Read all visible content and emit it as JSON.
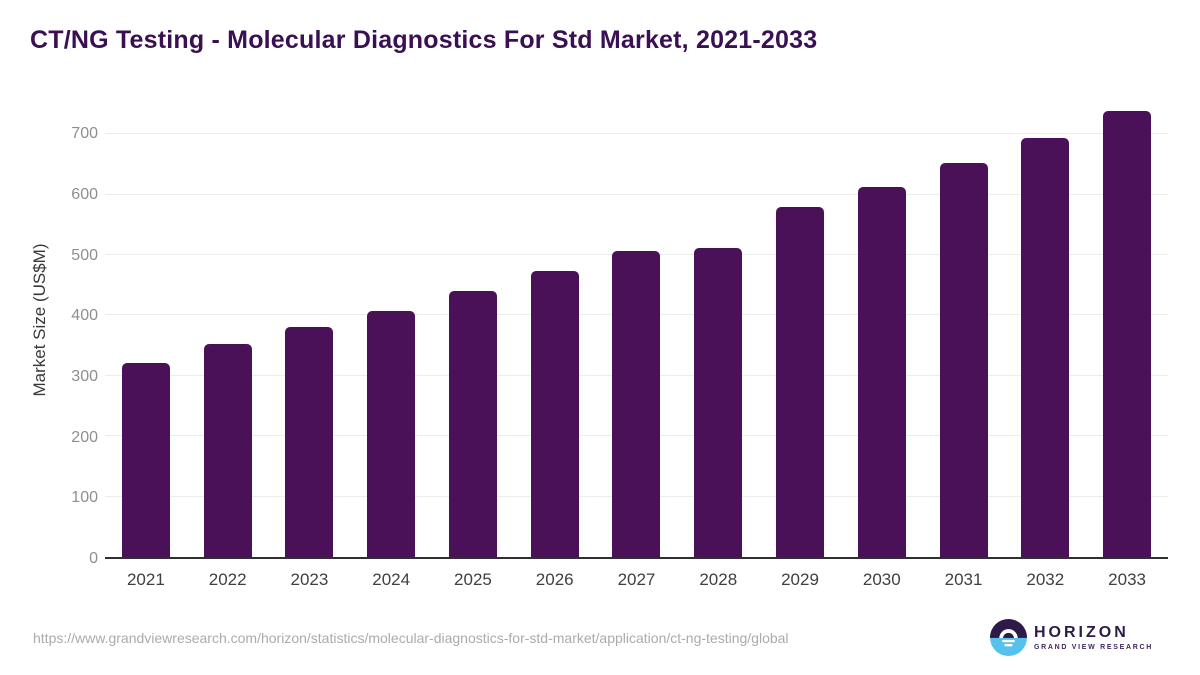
{
  "page": {
    "title": "CT/NG Testing - Molecular Diagnostics For Std Market, 2021-2033"
  },
  "chart_data": {
    "type": "bar",
    "title": "CT/NG Testing - Molecular Diagnostics For Std Market, 2021-2033",
    "categories": [
      "2021",
      "2022",
      "2023",
      "2024",
      "2025",
      "2026",
      "2027",
      "2028",
      "2029",
      "2030",
      "2031",
      "2032",
      "2033"
    ],
    "values": [
      322,
      353,
      380,
      408,
      440,
      473,
      507,
      512,
      580,
      612,
      652,
      693,
      738
    ],
    "xlabel": "",
    "ylabel": "Market Size (US$M)",
    "ylim": [
      0,
      750
    ],
    "yticks": [
      0,
      100,
      200,
      300,
      400,
      500,
      600,
      700
    ],
    "grid": "horizontal",
    "legend": "none",
    "bar_color": "#4a1158"
  },
  "footer": {
    "source_url": "https://www.grandviewresearch.com/horizon/statistics/molecular-diagnostics-for-std-market/application/ct-ng-testing/global",
    "logo": {
      "brand": "HORIZON",
      "sub_brand": "GRAND VIEW RESEARCH",
      "icon": "horizon-sunset-circle-icon",
      "brand_color": "#2e1a47",
      "accent_blue": "#56c1ec"
    }
  },
  "colors": {
    "background": "#ffffff",
    "title_text": "#3a1053",
    "bar": "#4a1158",
    "axis_line": "#2f2f2f",
    "gridline": "#ececec",
    "y_tick_label": "#8e8e8e",
    "x_tick_label": "#404040",
    "url_text": "#ababab"
  }
}
